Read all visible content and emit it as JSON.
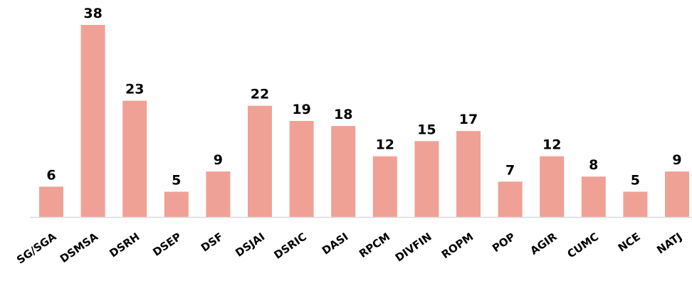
{
  "chart_data": {
    "type": "bar",
    "title": "",
    "xlabel": "",
    "ylabel": "",
    "categories": [
      "SG/SGA",
      "DSMSA",
      "DSRH",
      "DSEP",
      "DSF",
      "DSJAI",
      "DSRIC",
      "DASI",
      "RPCM",
      "DIVFIN",
      "ROPM",
      "POP",
      "AGIR",
      "CUMC",
      "NCE",
      "NATJ"
    ],
    "values": [
      6,
      38,
      23,
      5,
      9,
      22,
      19,
      18,
      12,
      15,
      17,
      7,
      12,
      8,
      5,
      9
    ],
    "data_labels": [
      "6",
      "38",
      "23",
      "5",
      "9",
      "22",
      "19",
      "18",
      "12",
      "15",
      "17",
      "7",
      "12",
      "8",
      "5",
      "9"
    ],
    "ylim": [
      0,
      38
    ],
    "grid": false,
    "legend": "none",
    "colors": {
      "bar": "#f0a195",
      "axis": "#d9d9d9",
      "text": "#000000"
    }
  }
}
